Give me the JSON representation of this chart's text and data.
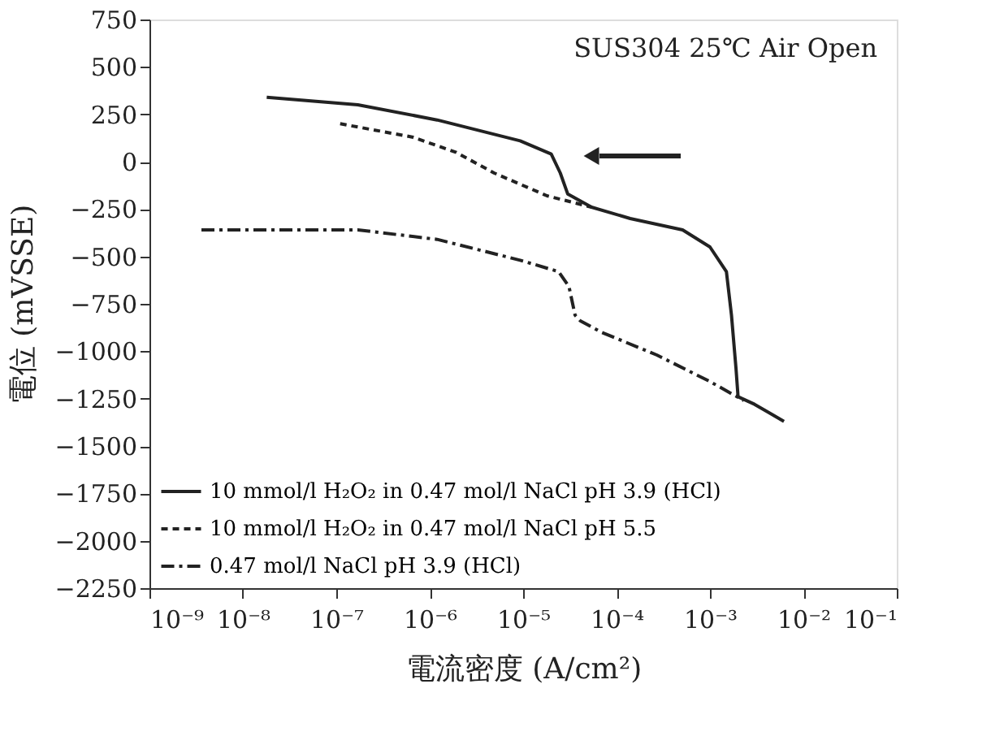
{
  "chart_data": {
    "type": "line",
    "xlabel": "電流密度 (A/cm²)",
    "ylabel": "電位 (mVSSE)",
    "log": "x",
    "grid": false,
    "legend": "bottom left",
    "xlim": [
      1e-09,
      0.1
    ],
    "xticks": [
      {
        "value": 1e-09,
        "label": "10⁻⁹"
      },
      {
        "value": 1e-08,
        "label": "10⁻⁸"
      },
      {
        "value": 1e-07,
        "label": "10⁻⁷"
      },
      {
        "value": 1e-06,
        "label": "10⁻⁶"
      },
      {
        "value": 1e-05,
        "label": "10⁻⁵"
      },
      {
        "value": 0.0001,
        "label": "10⁻⁴"
      },
      {
        "value": 0.001,
        "label": "10⁻³"
      },
      {
        "value": 0.01,
        "label": "10⁻²"
      },
      {
        "value": 0.1,
        "label": "10⁻¹"
      }
    ],
    "ylim": [
      -2250,
      750
    ],
    "yticks": [
      -2250,
      -2000,
      -1750,
      -1500,
      -1250,
      -1000,
      -750,
      -500,
      -250,
      0,
      250,
      500,
      750
    ],
    "annotations": [
      "SUS304  25℃ Air Open"
    ],
    "series": [
      {
        "name": "10 mmol/l H₂O₂ in 0.47 mol/l NaCl pH 3.9 (HCl)",
        "color": "#222222",
        "line_style": "solid",
        "x": [
          1.8e-08,
          1.7e-07,
          1.2e-06,
          9.3e-06,
          2e-05,
          2.5e-05,
          3e-05,
          5.4e-05,
          0.00014,
          0.00051,
          0.001,
          0.0015,
          0.0017,
          0.0019,
          0.002,
          0.003,
          0.0062
        ],
        "values": [
          340,
          300,
          220,
          110,
          40,
          -60,
          -170,
          -240,
          -300,
          -360,
          -450,
          -580,
          -810,
          -1090,
          -1240,
          -1280,
          -1370
        ]
      },
      {
        "name": "10 mmol/l H₂O₂ in 0.47 mol/l NaCl pH 5.5",
        "color": "#222222",
        "line_style": "dashed",
        "x": [
          1.1e-07,
          6.5e-07,
          1.9e-06,
          4.9e-06,
          1.8e-05,
          5.4e-05
        ],
        "values": [
          200,
          130,
          50,
          -60,
          -180,
          -240
        ]
      },
      {
        "name": "0.47 mol/l NaCl pH 3.9 (HCl)",
        "color": "#222222",
        "line_style": "dashdot",
        "x": [
          3.6e-09,
          1.7e-07,
          1.2e-06,
          9.3e-06,
          2.4e-05,
          3.1e-05,
          3.6e-05,
          4.1e-05,
          6.9e-05,
          0.00027,
          0.001,
          0.0023
        ],
        "values": [
          -360,
          -360,
          -410,
          -520,
          -580,
          -660,
          -810,
          -840,
          -900,
          -1020,
          -1160,
          -1260
        ]
      }
    ]
  }
}
